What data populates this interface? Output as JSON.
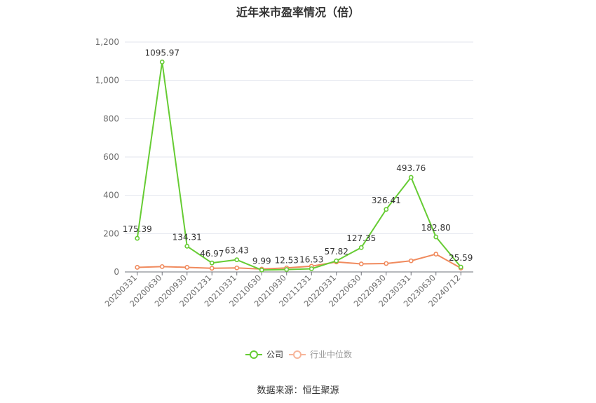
{
  "title": "近年来市盈率情况（倍）",
  "source": "数据来源：恒生聚源",
  "chart_data": {
    "type": "line",
    "title": "近年来市盈率情况（倍）",
    "categories": [
      "20200331",
      "20200630",
      "20200930",
      "20201231",
      "20210331",
      "20210630",
      "20210930",
      "20211231",
      "20220331",
      "20220630",
      "20220930",
      "20230331",
      "20230630",
      "20240712"
    ],
    "ylim": [
      0,
      1200
    ],
    "yticks": [
      0,
      200,
      400,
      600,
      800,
      1000,
      1200
    ],
    "ytick_labels": [
      "0",
      "200",
      "400",
      "600",
      "800",
      "1,000",
      "1,200"
    ],
    "grid": true,
    "legend_position": "bottom",
    "series": [
      {
        "name": "公司",
        "color": "#66cc33",
        "values": [
          175.39,
          1095.97,
          134.31,
          46.97,
          63.43,
          9.99,
          12.53,
          16.53,
          57.82,
          127.35,
          326.41,
          493.76,
          182.8,
          25.59
        ],
        "labels": [
          "175.39",
          "1095.97",
          "134.31",
          "46.97",
          "63.43",
          "9.99",
          "12.53",
          "16.53",
          "57.82",
          "127.35",
          "326.41",
          "493.76",
          "182.80",
          "25.59"
        ]
      },
      {
        "name": "行业中位数",
        "color": "#f08a5d",
        "values": [
          24,
          28,
          24,
          19,
          21,
          15,
          21,
          30,
          52,
          42,
          44,
          58,
          93,
          20
        ]
      }
    ]
  }
}
